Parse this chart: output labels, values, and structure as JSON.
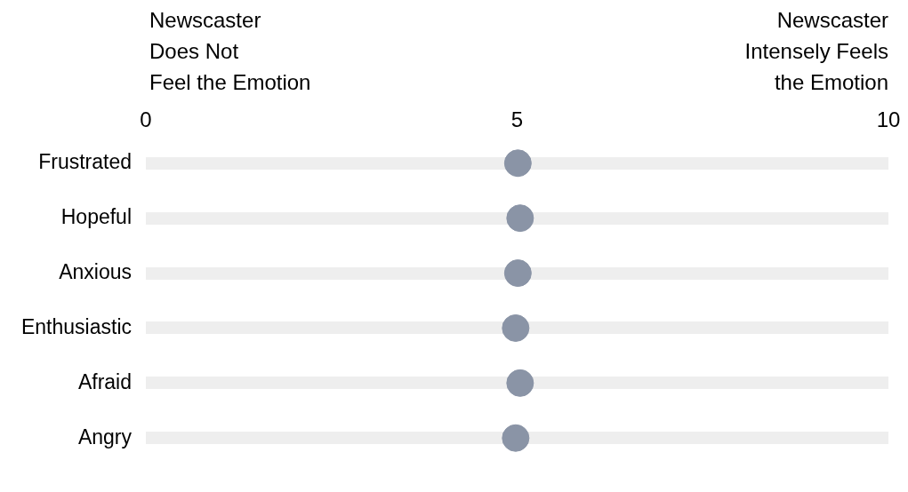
{
  "chart_data": {
    "type": "scatter",
    "orientation": "horizontal",
    "categories": [
      "Frustrated",
      "Hopeful",
      "Anxious",
      "Enthusiastic",
      "Afraid",
      "Angry"
    ],
    "series": [
      {
        "color": "#8a94a6",
        "values": [
          5.01,
          5.04,
          5.01,
          4.98,
          5.04,
          4.98
        ]
      }
    ],
    "xlim": [
      0,
      10
    ],
    "xticks": [
      0,
      5,
      10
    ],
    "grid": "y",
    "legend": false,
    "marker": "circle",
    "annotations": [
      "Newscaster\nDoes Not\nFeel the Emotion",
      "Newscaster\nIntensely Feels\nthe Emotion"
    ]
  }
}
